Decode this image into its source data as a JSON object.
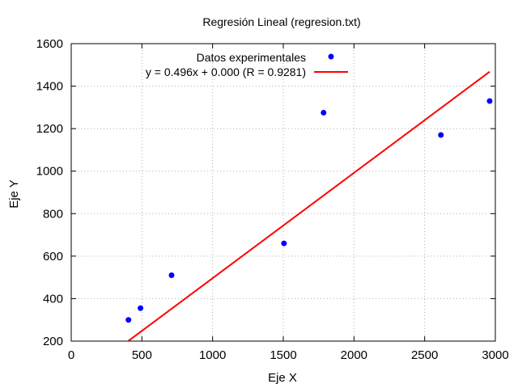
{
  "chart_data": {
    "type": "scatter",
    "title": "Regresión Lineal (regresion.txt)",
    "xlabel": "Eje X",
    "ylabel": "Eje Y",
    "xlim": [
      0,
      3000
    ],
    "ylim": [
      200,
      1600
    ],
    "x_ticks": [
      0,
      500,
      1000,
      1500,
      2000,
      2500,
      3000
    ],
    "y_ticks": [
      200,
      400,
      600,
      800,
      1000,
      1200,
      1400,
      1600
    ],
    "grid": true,
    "legend_position": "top-center",
    "series": [
      {
        "name": "Datos experimentales",
        "kind": "points",
        "color": "#0000ff",
        "x": [
          405,
          490,
          710,
          1505,
          1785,
          2615,
          2960
        ],
        "y": [
          300,
          355,
          510,
          660,
          1275,
          1170,
          1330
        ]
      },
      {
        "name": "y = 0.496x + 0.000  (R = 0.9281)",
        "kind": "line",
        "color": "#ff0000",
        "x": [
          405,
          2960
        ],
        "y": [
          201,
          1468
        ]
      }
    ]
  }
}
